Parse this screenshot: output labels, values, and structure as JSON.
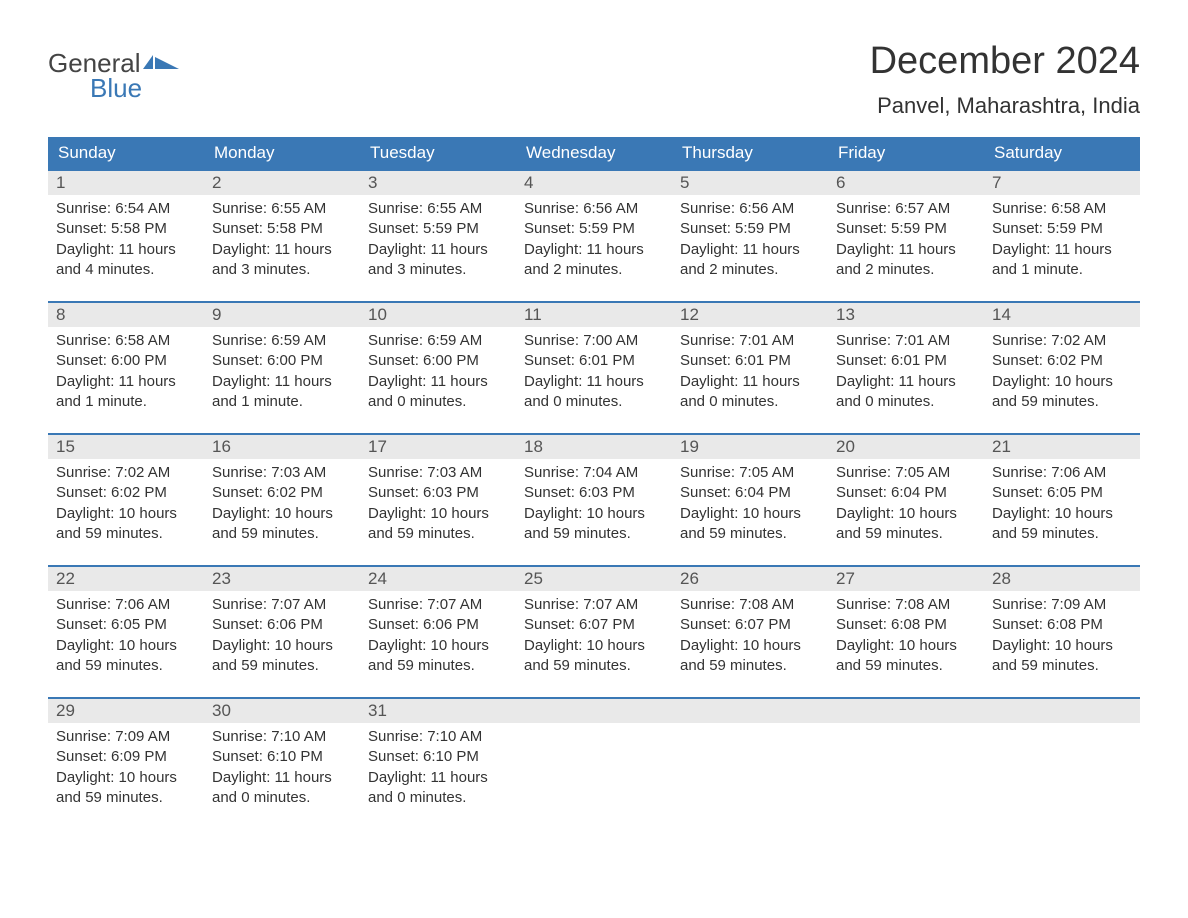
{
  "logo": {
    "text1": "General",
    "text2": "Blue"
  },
  "title": "December 2024",
  "location": "Panvel, Maharashtra, India",
  "colors": {
    "header_bg": "#3a78b5",
    "header_text": "#ffffff",
    "daynum_bg": "#e9e9e9",
    "border": "#3a78b5",
    "body_text": "#333333",
    "logo_gray": "#444444",
    "logo_blue": "#3a78b5",
    "page_bg": "#ffffff"
  },
  "weekdays": [
    "Sunday",
    "Monday",
    "Tuesday",
    "Wednesday",
    "Thursday",
    "Friday",
    "Saturday"
  ],
  "weeks": [
    [
      {
        "n": "1",
        "sunrise": "Sunrise: 6:54 AM",
        "sunset": "Sunset: 5:58 PM",
        "daylight": "Daylight: 11 hours and 4 minutes."
      },
      {
        "n": "2",
        "sunrise": "Sunrise: 6:55 AM",
        "sunset": "Sunset: 5:58 PM",
        "daylight": "Daylight: 11 hours and 3 minutes."
      },
      {
        "n": "3",
        "sunrise": "Sunrise: 6:55 AM",
        "sunset": "Sunset: 5:59 PM",
        "daylight": "Daylight: 11 hours and 3 minutes."
      },
      {
        "n": "4",
        "sunrise": "Sunrise: 6:56 AM",
        "sunset": "Sunset: 5:59 PM",
        "daylight": "Daylight: 11 hours and 2 minutes."
      },
      {
        "n": "5",
        "sunrise": "Sunrise: 6:56 AM",
        "sunset": "Sunset: 5:59 PM",
        "daylight": "Daylight: 11 hours and 2 minutes."
      },
      {
        "n": "6",
        "sunrise": "Sunrise: 6:57 AM",
        "sunset": "Sunset: 5:59 PM",
        "daylight": "Daylight: 11 hours and 2 minutes."
      },
      {
        "n": "7",
        "sunrise": "Sunrise: 6:58 AM",
        "sunset": "Sunset: 5:59 PM",
        "daylight": "Daylight: 11 hours and 1 minute."
      }
    ],
    [
      {
        "n": "8",
        "sunrise": "Sunrise: 6:58 AM",
        "sunset": "Sunset: 6:00 PM",
        "daylight": "Daylight: 11 hours and 1 minute."
      },
      {
        "n": "9",
        "sunrise": "Sunrise: 6:59 AM",
        "sunset": "Sunset: 6:00 PM",
        "daylight": "Daylight: 11 hours and 1 minute."
      },
      {
        "n": "10",
        "sunrise": "Sunrise: 6:59 AM",
        "sunset": "Sunset: 6:00 PM",
        "daylight": "Daylight: 11 hours and 0 minutes."
      },
      {
        "n": "11",
        "sunrise": "Sunrise: 7:00 AM",
        "sunset": "Sunset: 6:01 PM",
        "daylight": "Daylight: 11 hours and 0 minutes."
      },
      {
        "n": "12",
        "sunrise": "Sunrise: 7:01 AM",
        "sunset": "Sunset: 6:01 PM",
        "daylight": "Daylight: 11 hours and 0 minutes."
      },
      {
        "n": "13",
        "sunrise": "Sunrise: 7:01 AM",
        "sunset": "Sunset: 6:01 PM",
        "daylight": "Daylight: 11 hours and 0 minutes."
      },
      {
        "n": "14",
        "sunrise": "Sunrise: 7:02 AM",
        "sunset": "Sunset: 6:02 PM",
        "daylight": "Daylight: 10 hours and 59 minutes."
      }
    ],
    [
      {
        "n": "15",
        "sunrise": "Sunrise: 7:02 AM",
        "sunset": "Sunset: 6:02 PM",
        "daylight": "Daylight: 10 hours and 59 minutes."
      },
      {
        "n": "16",
        "sunrise": "Sunrise: 7:03 AM",
        "sunset": "Sunset: 6:02 PM",
        "daylight": "Daylight: 10 hours and 59 minutes."
      },
      {
        "n": "17",
        "sunrise": "Sunrise: 7:03 AM",
        "sunset": "Sunset: 6:03 PM",
        "daylight": "Daylight: 10 hours and 59 minutes."
      },
      {
        "n": "18",
        "sunrise": "Sunrise: 7:04 AM",
        "sunset": "Sunset: 6:03 PM",
        "daylight": "Daylight: 10 hours and 59 minutes."
      },
      {
        "n": "19",
        "sunrise": "Sunrise: 7:05 AM",
        "sunset": "Sunset: 6:04 PM",
        "daylight": "Daylight: 10 hours and 59 minutes."
      },
      {
        "n": "20",
        "sunrise": "Sunrise: 7:05 AM",
        "sunset": "Sunset: 6:04 PM",
        "daylight": "Daylight: 10 hours and 59 minutes."
      },
      {
        "n": "21",
        "sunrise": "Sunrise: 7:06 AM",
        "sunset": "Sunset: 6:05 PM",
        "daylight": "Daylight: 10 hours and 59 minutes."
      }
    ],
    [
      {
        "n": "22",
        "sunrise": "Sunrise: 7:06 AM",
        "sunset": "Sunset: 6:05 PM",
        "daylight": "Daylight: 10 hours and 59 minutes."
      },
      {
        "n": "23",
        "sunrise": "Sunrise: 7:07 AM",
        "sunset": "Sunset: 6:06 PM",
        "daylight": "Daylight: 10 hours and 59 minutes."
      },
      {
        "n": "24",
        "sunrise": "Sunrise: 7:07 AM",
        "sunset": "Sunset: 6:06 PM",
        "daylight": "Daylight: 10 hours and 59 minutes."
      },
      {
        "n": "25",
        "sunrise": "Sunrise: 7:07 AM",
        "sunset": "Sunset: 6:07 PM",
        "daylight": "Daylight: 10 hours and 59 minutes."
      },
      {
        "n": "26",
        "sunrise": "Sunrise: 7:08 AM",
        "sunset": "Sunset: 6:07 PM",
        "daylight": "Daylight: 10 hours and 59 minutes."
      },
      {
        "n": "27",
        "sunrise": "Sunrise: 7:08 AM",
        "sunset": "Sunset: 6:08 PM",
        "daylight": "Daylight: 10 hours and 59 minutes."
      },
      {
        "n": "28",
        "sunrise": "Sunrise: 7:09 AM",
        "sunset": "Sunset: 6:08 PM",
        "daylight": "Daylight: 10 hours and 59 minutes."
      }
    ],
    [
      {
        "n": "29",
        "sunrise": "Sunrise: 7:09 AM",
        "sunset": "Sunset: 6:09 PM",
        "daylight": "Daylight: 10 hours and 59 minutes."
      },
      {
        "n": "30",
        "sunrise": "Sunrise: 7:10 AM",
        "sunset": "Sunset: 6:10 PM",
        "daylight": "Daylight: 11 hours and 0 minutes."
      },
      {
        "n": "31",
        "sunrise": "Sunrise: 7:10 AM",
        "sunset": "Sunset: 6:10 PM",
        "daylight": "Daylight: 11 hours and 0 minutes."
      },
      {
        "empty": true
      },
      {
        "empty": true
      },
      {
        "empty": true
      },
      {
        "empty": true
      }
    ]
  ]
}
